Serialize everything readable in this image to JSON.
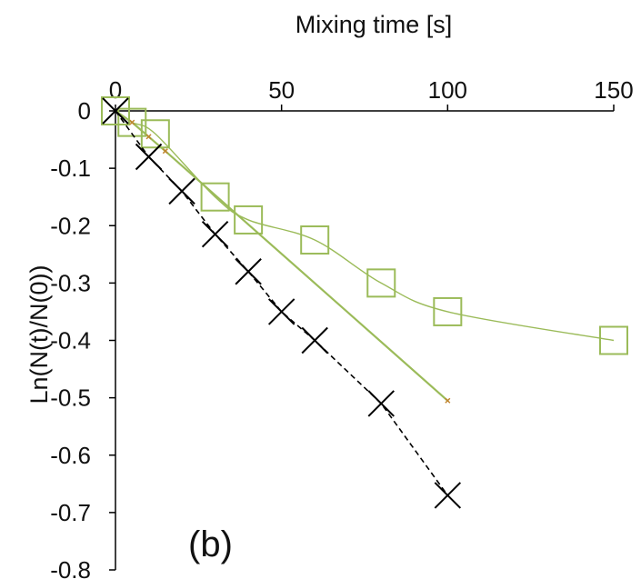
{
  "chart_data": {
    "type": "scatter",
    "title": "",
    "xlabel": "Mixing time [s]",
    "ylabel": "Ln(N(t)/N(0))",
    "panel_label": "(b)",
    "xlim": [
      0,
      150
    ],
    "ylim": [
      -0.8,
      0
    ],
    "x_ticks": [
      0,
      50,
      100,
      150
    ],
    "y_ticks": [
      0,
      -0.1,
      -0.2,
      -0.3,
      -0.4,
      -0.5,
      -0.6,
      -0.7,
      -0.8
    ],
    "x_axis_position": "top",
    "grid": false,
    "series": [
      {
        "marker": "square",
        "color": "#9bbb59",
        "line": "smooth",
        "x": [
          0,
          5,
          12,
          30,
          40,
          60,
          80,
          100,
          150
        ],
        "y": [
          0,
          -0.02,
          -0.04,
          -0.15,
          -0.19,
          -0.225,
          -0.3,
          -0.35,
          -0.4
        ]
      },
      {
        "marker": "small-cross",
        "color": "#9bbb59",
        "marker_color": "#c0852f",
        "line": "solid",
        "x": [
          0,
          5,
          10,
          15,
          100
        ],
        "y": [
          0,
          -0.02,
          -0.045,
          -0.07,
          -0.505
        ]
      },
      {
        "marker": "x",
        "color": "#000000",
        "line": "dashed",
        "x": [
          0,
          10,
          20,
          30,
          40,
          50,
          60,
          80,
          100
        ],
        "y": [
          0,
          -0.08,
          -0.14,
          -0.215,
          -0.28,
          -0.35,
          -0.4,
          -0.51,
          -0.67
        ]
      }
    ]
  }
}
